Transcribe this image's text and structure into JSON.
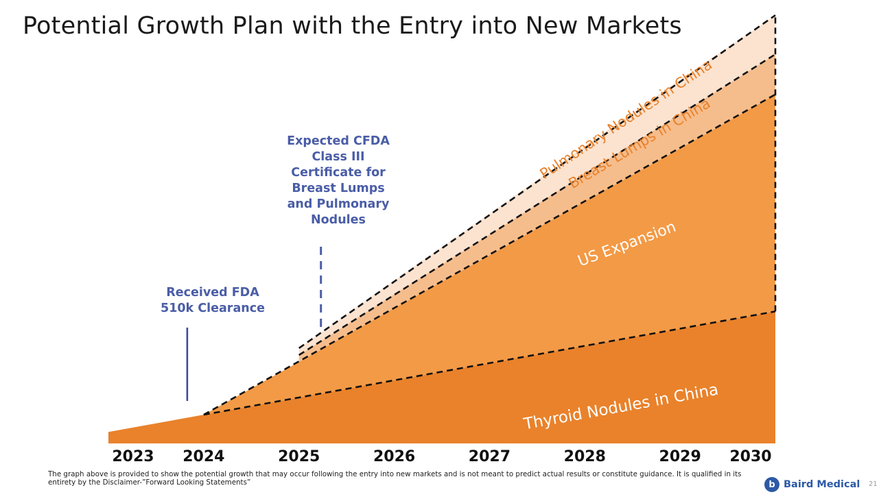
{
  "page": {
    "title": "Potential Growth Plan with the Entry into New Markets",
    "disclaimer": "The graph above is provided to show the potential growth that may occur following the entry into new markets and is not meant to predict actual results or constitute guidance. It is qualified in its entirety by the Disclaimer-”Forward Looking Statements”",
    "logo_mark": "b",
    "logo_text": "Baird Medical",
    "page_number": "21"
  },
  "annotations": {
    "fda": "Received FDA 510k Clearance",
    "cfda": "Expected CFDA Class III Certificate for Breast Lumps and Pulmonary Nodules"
  },
  "chart_data": {
    "type": "area",
    "stacked": true,
    "x": [
      "2023",
      "2024",
      "2025",
      "2026",
      "2027",
      "2028",
      "2029",
      "2030"
    ],
    "series": [
      {
        "name": "Thyroid Nodules in China",
        "values": [
          0.5,
          1.25,
          2.0,
          2.75,
          3.5,
          4.25,
          5.0,
          5.75
        ],
        "color": "#e9822b",
        "start": "2023"
      },
      {
        "name": "US Expansion",
        "values": [
          null,
          0,
          1.55,
          3.15,
          4.7,
          6.3,
          7.85,
          9.45
        ],
        "color": "#f39a46",
        "start": "2024"
      },
      {
        "name": "Breast Lumps in China",
        "values": [
          null,
          null,
          0.3,
          0.6,
          0.9,
          1.2,
          1.5,
          1.75
        ],
        "color": "#f6bd8c",
        "start": "2025"
      },
      {
        "name": "Pulmonary Nodules in China",
        "values": [
          null,
          null,
          0.3,
          0.6,
          0.9,
          1.2,
          1.5,
          1.7
        ],
        "color": "#fbe3d0",
        "start": "2025"
      }
    ],
    "xlabel": "",
    "ylabel": "",
    "y_axis_shown": false,
    "grid": false,
    "legend": "none",
    "series_labels_inside": true,
    "markers": [
      {
        "label_ref": "fda",
        "x": "2024",
        "style": "solid"
      },
      {
        "label_ref": "cfda",
        "x": "2025",
        "style": "dashed"
      }
    ]
  }
}
